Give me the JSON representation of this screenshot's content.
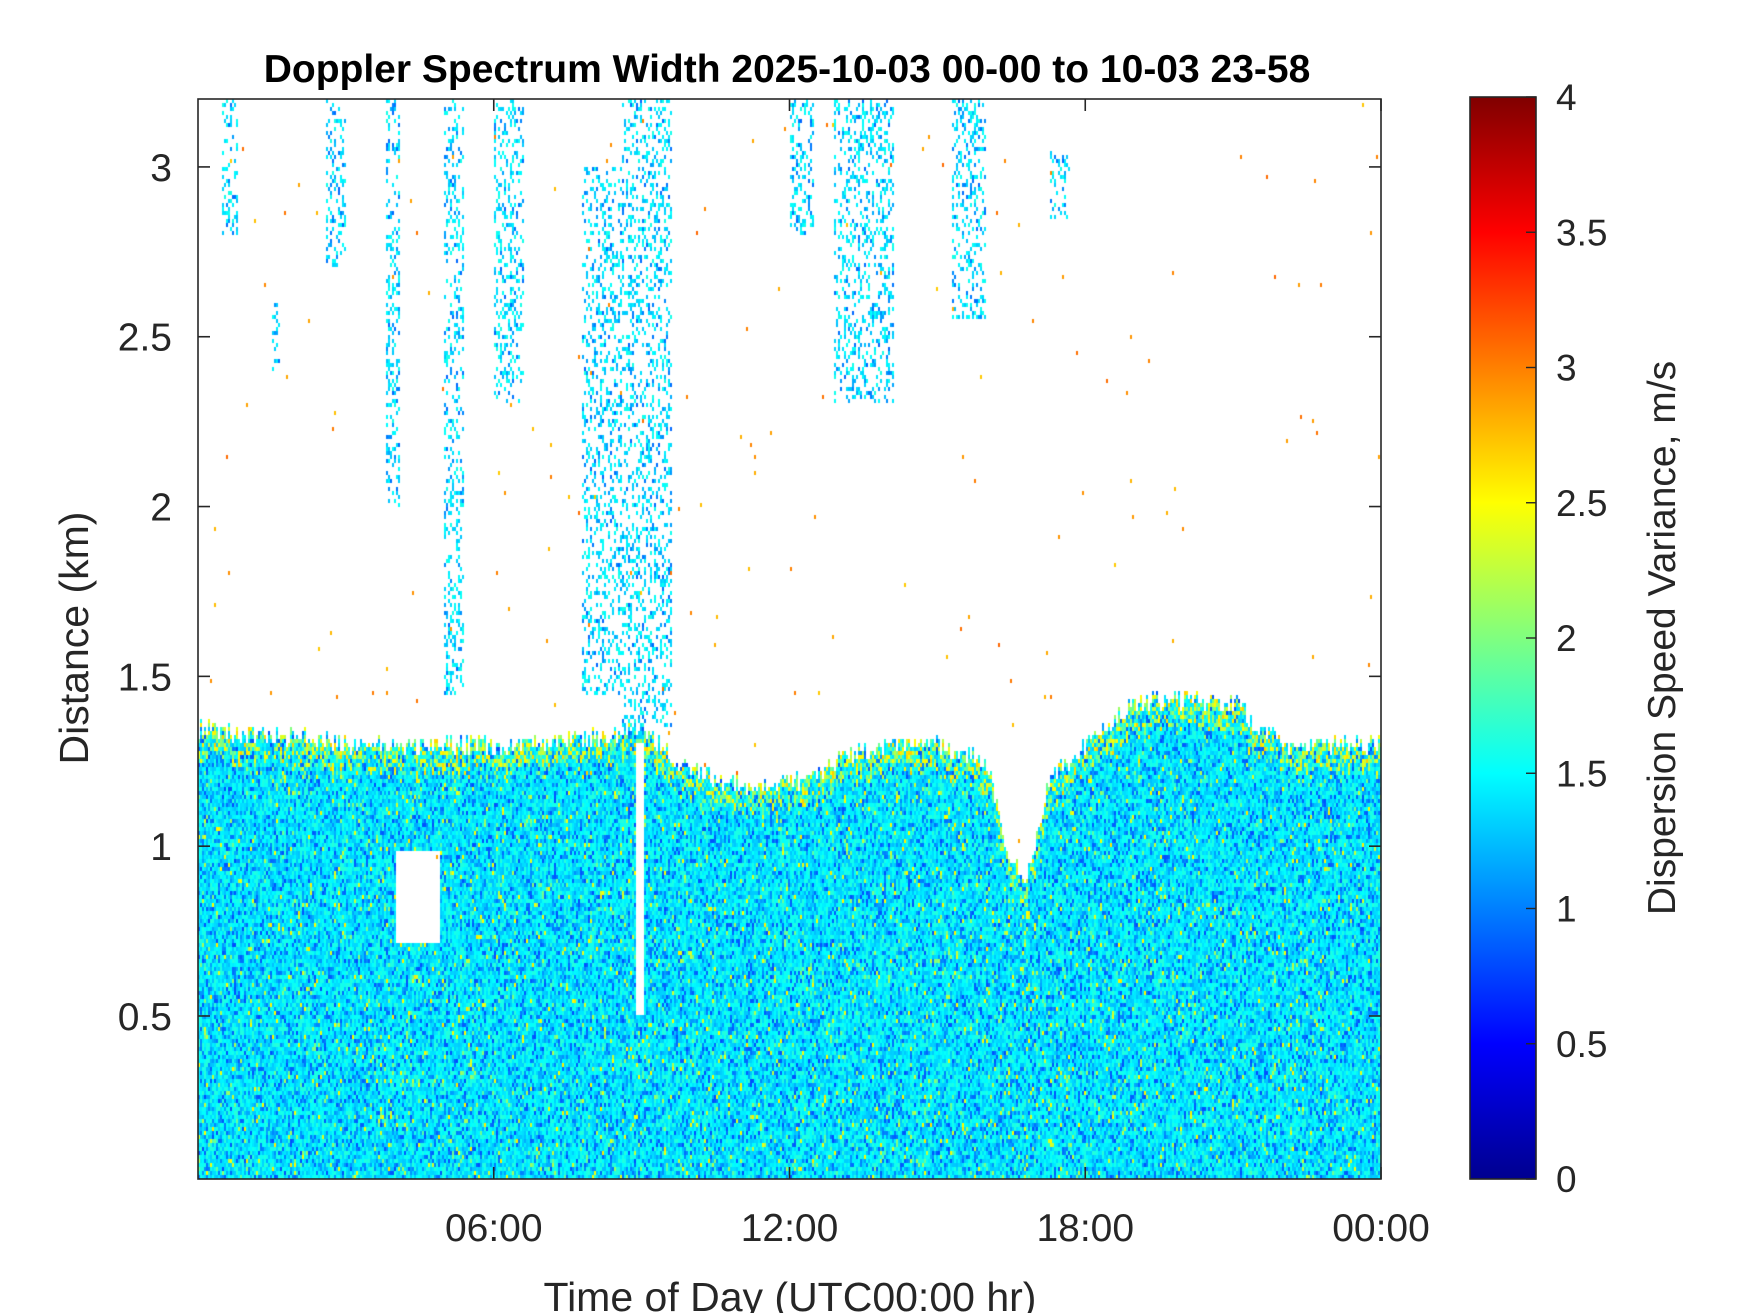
{
  "chart_data": {
    "type": "heatmap",
    "title": "Doppler Spectrum Width 2025-10-03 00-00 to 10-03 23-58",
    "xlabel": "Time of Day (UTC00:00 hr)",
    "ylabel": "Distance (km)",
    "colorbar_label": "Dispersion Speed Variance, m/s",
    "colormap": "jet",
    "xlim_hours": [
      0,
      24
    ],
    "ylim_km": [
      0.02,
      3.2
    ],
    "clim": [
      0,
      4
    ],
    "x_ticks": [
      {
        "value": 6,
        "label": "06:00"
      },
      {
        "value": 12,
        "label": "12:00"
      },
      {
        "value": 18,
        "label": "18:00"
      },
      {
        "value": 24,
        "label": "00:00"
      }
    ],
    "y_ticks": [
      {
        "value": 0.5,
        "label": "0.5"
      },
      {
        "value": 1,
        "label": "1"
      },
      {
        "value": 1.5,
        "label": "1.5"
      },
      {
        "value": 2,
        "label": "2"
      },
      {
        "value": 2.5,
        "label": "2.5"
      },
      {
        "value": 3,
        "label": "3"
      }
    ],
    "colorbar_ticks": [
      {
        "value": 0,
        "label": "0"
      },
      {
        "value": 0.5,
        "label": "0.5"
      },
      {
        "value": 1,
        "label": "1"
      },
      {
        "value": 1.5,
        "label": "1.5"
      },
      {
        "value": 2,
        "label": "2"
      },
      {
        "value": 2.5,
        "label": "2.5"
      },
      {
        "value": 3,
        "label": "3"
      },
      {
        "value": 3.5,
        "label": "3.5"
      },
      {
        "value": 4,
        "label": "4"
      }
    ],
    "boundary_layer_top_km": [
      [
        0,
        1.35
      ],
      [
        1,
        1.33
      ],
      [
        2,
        1.32
      ],
      [
        3,
        1.3
      ],
      [
        4,
        1.29
      ],
      [
        5,
        1.3
      ],
      [
        6,
        1.3
      ],
      [
        7,
        1.3
      ],
      [
        8,
        1.32
      ],
      [
        9,
        1.35
      ],
      [
        10,
        1.22
      ],
      [
        11,
        1.18
      ],
      [
        12,
        1.18
      ],
      [
        13,
        1.25
      ],
      [
        14,
        1.3
      ],
      [
        15,
        1.3
      ],
      [
        16,
        1.25
      ],
      [
        16.4,
        1.0
      ],
      [
        16.8,
        0.9
      ],
      [
        17.3,
        1.2
      ],
      [
        18,
        1.3
      ],
      [
        19,
        1.42
      ],
      [
        20,
        1.43
      ],
      [
        21,
        1.42
      ],
      [
        22,
        1.3
      ],
      [
        23,
        1.3
      ],
      [
        24,
        1.3
      ]
    ],
    "gaps": [
      {
        "x_hours": [
          4.0,
          4.9
        ],
        "y_km": [
          0.72,
          0.98
        ]
      },
      {
        "x_hours": [
          8.9,
          9.05
        ],
        "y_km": [
          0.5,
          1.3
        ]
      }
    ],
    "cloud_plumes": [
      {
        "x_hours": [
          0.5,
          0.8
        ],
        "y_km": [
          2.8,
          3.2
        ]
      },
      {
        "x_hours": [
          1.5,
          1.65
        ],
        "y_km": [
          2.4,
          2.6
        ]
      },
      {
        "x_hours": [
          2.6,
          3.0
        ],
        "y_km": [
          2.7,
          3.2
        ]
      },
      {
        "x_hours": [
          3.8,
          4.1
        ],
        "y_km": [
          2.0,
          3.2
        ]
      },
      {
        "x_hours": [
          5.0,
          5.4
        ],
        "y_km": [
          1.45,
          3.2
        ]
      },
      {
        "x_hours": [
          6.0,
          6.6
        ],
        "y_km": [
          2.3,
          3.2
        ]
      },
      {
        "x_hours": [
          7.8,
          8.6
        ],
        "y_km": [
          1.45,
          3.0
        ]
      },
      {
        "x_hours": [
          8.6,
          9.6
        ],
        "y_km": [
          1.35,
          3.2
        ]
      },
      {
        "x_hours": [
          12.0,
          12.5
        ],
        "y_km": [
          2.8,
          3.2
        ]
      },
      {
        "x_hours": [
          12.9,
          14.1
        ],
        "y_km": [
          2.3,
          3.2
        ]
      },
      {
        "x_hours": [
          15.3,
          16.0
        ],
        "y_km": [
          2.55,
          3.2
        ]
      },
      {
        "x_hours": [
          17.3,
          17.7
        ],
        "y_km": [
          2.85,
          3.05
        ]
      }
    ]
  }
}
